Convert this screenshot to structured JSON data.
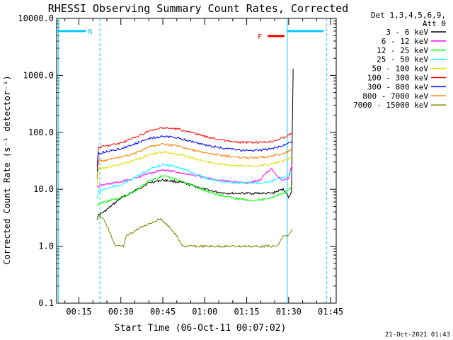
{
  "chart_data": {
    "type": "line",
    "title": "RHESSI Observing Summary Count Rates, Corrected",
    "xlabel": "Start Time (06-Oct-11 00:07:02)",
    "ylabel": "Corrected Count Rate (s⁻¹ detector⁻¹)",
    "yscale": "log",
    "ylim": [
      0.1,
      10000
    ],
    "xlim_minutes": [
      7.03,
      107.0
    ],
    "x_ticks": [
      {
        "label": "00:15",
        "t": 15
      },
      {
        "label": "00:30",
        "t": 30
      },
      {
        "label": "00:45",
        "t": 45
      },
      {
        "label": "01:00",
        "t": 60
      },
      {
        "label": "01:15",
        "t": 75
      },
      {
        "label": "01:30",
        "t": 90
      },
      {
        "label": "01:45",
        "t": 105
      }
    ],
    "y_ticks": [
      {
        "label": "10000.0",
        "v": 10000
      },
      {
        "label": "1000.0",
        "v": 1000
      },
      {
        "label": "100.0",
        "v": 100
      },
      {
        "label": "10.0",
        "v": 10
      },
      {
        "label": "1.0",
        "v": 1
      },
      {
        "label": "0.1",
        "v": 0.1
      }
    ],
    "legend_header": [
      "Det 1,3,4,5,6,9,",
      "Att 0"
    ],
    "legend_position": "right",
    "series": [
      {
        "name": "3 - 6 keV",
        "color": "#000000",
        "x": [
          21.5,
          22,
          24,
          30,
          36,
          40,
          45,
          48,
          52,
          56,
          60,
          64,
          68,
          72,
          76,
          80,
          84,
          88,
          89,
          90,
          90.5,
          91,
          91.3,
          91.6
        ],
        "y": [
          3,
          3.5,
          4,
          7,
          10,
          13,
          14.5,
          14,
          13,
          11.5,
          10,
          9,
          8.5,
          8.5,
          8.5,
          8.5,
          8.5,
          10,
          9,
          7,
          8,
          9,
          120,
          1300
        ]
      },
      {
        "name": "6 - 12 keV",
        "color": "#ff00ff",
        "x": [
          21.5,
          24,
          30,
          36,
          40,
          45,
          50,
          55,
          60,
          65,
          70,
          75,
          80,
          82,
          84,
          86,
          88,
          90,
          91.3
        ],
        "y": [
          11,
          12,
          13.5,
          16,
          19,
          22,
          20,
          18,
          16,
          14.5,
          13.5,
          13,
          14.5,
          20,
          23,
          17,
          14,
          16,
          28
        ]
      },
      {
        "name": "12 - 25 keV",
        "color": "#00ff00",
        "x": [
          21.5,
          22,
          24,
          30,
          36,
          40,
          45,
          50,
          55,
          60,
          65,
          70,
          75,
          80,
          85,
          88,
          90,
          91.3
        ],
        "y": [
          5,
          5.5,
          6,
          7,
          10,
          14,
          17,
          15,
          12,
          9.5,
          8,
          7,
          6.5,
          6.5,
          7.5,
          8.5,
          9.5,
          12
        ]
      },
      {
        "name": "25 - 50 keV",
        "color": "#00ffff",
        "x": [
          21.5,
          22,
          24,
          30,
          36,
          40,
          45,
          50,
          55,
          60,
          65,
          70,
          75,
          80,
          84,
          88,
          90,
          91.3
        ],
        "y": [
          7,
          9,
          10,
          12,
          17,
          22,
          27,
          25,
          20,
          16,
          14,
          13,
          13,
          13,
          14,
          16,
          18,
          20
        ]
      },
      {
        "name": "50 - 100 keV",
        "color": "#dddd00",
        "x": [
          21.5,
          22,
          24,
          30,
          36,
          40,
          45,
          50,
          55,
          60,
          65,
          70,
          75,
          80,
          84,
          88,
          90,
          91.3
        ],
        "y": [
          12,
          23,
          24,
          27,
          34,
          40,
          45,
          42,
          36,
          31,
          28,
          26,
          26,
          26,
          28,
          31,
          34,
          38
        ]
      },
      {
        "name": "100 - 300 keV",
        "color": "#ff0000",
        "x": [
          21.5,
          22,
          24,
          30,
          36,
          40,
          45,
          50,
          55,
          60,
          65,
          70,
          75,
          80,
          84,
          88,
          90,
          91.3
        ],
        "y": [
          25,
          55,
          57,
          65,
          85,
          105,
          120,
          115,
          100,
          85,
          75,
          68,
          66,
          66,
          70,
          80,
          90,
          95
        ]
      },
      {
        "name": "300 - 800 keV",
        "color": "#0000ff",
        "x": [
          21.5,
          22,
          24,
          30,
          36,
          40,
          45,
          50,
          55,
          60,
          65,
          70,
          75,
          80,
          84,
          88,
          90,
          91.3
        ],
        "y": [
          20,
          42,
          45,
          52,
          65,
          78,
          85,
          80,
          70,
          60,
          54,
          50,
          48,
          48,
          52,
          58,
          65,
          70
        ]
      },
      {
        "name": "800 - 7000 keV",
        "color": "#ff8000",
        "x": [
          21.5,
          22,
          24,
          30,
          36,
          40,
          45,
          50,
          55,
          60,
          65,
          70,
          75,
          80,
          84,
          88,
          90,
          91.3
        ],
        "y": [
          15,
          31,
          32,
          36,
          45,
          55,
          62,
          58,
          50,
          44,
          40,
          37,
          36,
          36,
          38,
          42,
          47,
          52
        ]
      },
      {
        "name": "7000 - 15000 keV",
        "color": "#808000",
        "x": [
          21.5,
          22,
          24,
          28,
          31,
          32,
          36,
          40,
          44,
          46,
          48,
          50,
          52,
          54,
          56,
          60,
          64,
          68,
          72,
          76,
          80,
          84,
          86,
          88,
          90,
          91.3
        ],
        "y": [
          3,
          3.5,
          3,
          1,
          1,
          1.5,
          2,
          2.5,
          3,
          2.5,
          2,
          1.5,
          1,
          1,
          1,
          1,
          1,
          1,
          1,
          1,
          1,
          1,
          1,
          1.5,
          1.5,
          2
        ]
      }
    ],
    "intervals": [
      {
        "label": "N",
        "color": "#00ccff",
        "t0": 7.03,
        "t1": 17.5,
        "at": 6000
      },
      {
        "label": "",
        "color": "#00ccff",
        "t0": 89.5,
        "t1": 102.5,
        "at": 6000
      },
      {
        "label": "F",
        "color": "#ff0000",
        "t0": 82.5,
        "t1": 88.5,
        "at": 4900
      }
    ],
    "vertical_lines": [
      {
        "t": 7.6,
        "color": "#00ccff",
        "style": "solid"
      },
      {
        "t": 22.5,
        "color": "#00ccff",
        "style": "dashed"
      },
      {
        "t": 89.5,
        "color": "#00ccff",
        "style": "solid"
      },
      {
        "t": 103.5,
        "color": "#00ccff",
        "style": "dashed"
      }
    ]
  },
  "footer": {
    "timestamp": "21-Oct-2021 01:43"
  }
}
